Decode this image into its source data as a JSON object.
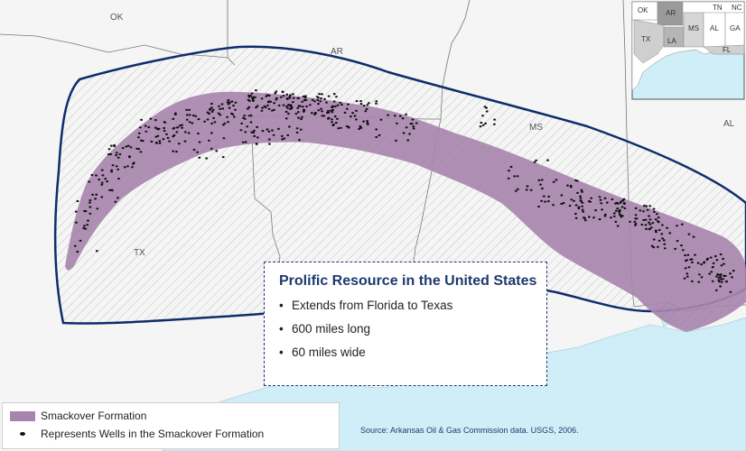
{
  "info": {
    "title": "Prolific Resource in the United States",
    "bullets": [
      "Extends from Florida to Texas",
      "600 miles long",
      "60 miles wide"
    ]
  },
  "legend": {
    "items": [
      {
        "label": "Smackover Formation",
        "symbol": "purple-swatch",
        "color": "#a784ad"
      },
      {
        "label": "Represents Wells in the Smackover Formation",
        "symbol": "black-dot",
        "color": "#111111"
      }
    ]
  },
  "source": "Source: Arkansas Oil & Gas Commission data. USGS, 2006.",
  "state_labels": {
    "ok": "OK",
    "ar": "AR",
    "ms": "MS",
    "al": "AL",
    "tx": "TX"
  },
  "inset": {
    "labels": {
      "ok": "OK",
      "ar": "AR",
      "tn": "TN",
      "nc": "NC",
      "tx": "TX",
      "la": "LA",
      "ms": "MS",
      "al": "AL",
      "ga": "GA",
      "fl": "FL"
    }
  },
  "colors": {
    "formation": "#a784ad",
    "wells": "#111111",
    "boundary": "#0f2d6b",
    "water": "#cfeef7",
    "accent": "#1d3a6e"
  }
}
